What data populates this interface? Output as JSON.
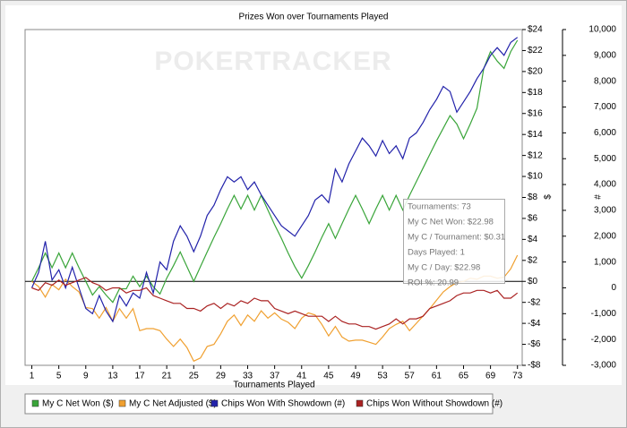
{
  "chart_data": {
    "type": "line",
    "title": "Prizes Won over Tournaments Played",
    "watermark": "POKERTRACKER",
    "x_label": "Tournaments Played",
    "y_label": "$",
    "y2_label": "#",
    "x": [
      1,
      2,
      3,
      4,
      5,
      6,
      7,
      8,
      9,
      10,
      11,
      12,
      13,
      14,
      15,
      16,
      17,
      18,
      19,
      20,
      21,
      22,
      23,
      24,
      25,
      26,
      27,
      28,
      29,
      30,
      31,
      32,
      33,
      34,
      35,
      36,
      37,
      38,
      39,
      40,
      41,
      42,
      43,
      44,
      45,
      46,
      47,
      48,
      49,
      50,
      51,
      52,
      53,
      54,
      55,
      56,
      57,
      58,
      59,
      60,
      61,
      62,
      63,
      64,
      65,
      66,
      67,
      68,
      69,
      70,
      71,
      72,
      73
    ],
    "xlim": [
      0,
      73.7
    ],
    "xticks": [
      1,
      5,
      9,
      13,
      17,
      21,
      25,
      29,
      33,
      37,
      41,
      45,
      49,
      53,
      57,
      61,
      65,
      69,
      73
    ],
    "ylim": [
      -8,
      24
    ],
    "yticks": [
      {
        "value": -8,
        "label": "-$8"
      },
      {
        "value": -6,
        "label": "-$6"
      },
      {
        "value": -4,
        "label": "-$4"
      },
      {
        "value": -2,
        "label": "-$2"
      },
      {
        "value": 0,
        "label": "$0"
      },
      {
        "value": 2,
        "label": "$2"
      },
      {
        "value": 4,
        "label": "$4"
      },
      {
        "value": 6,
        "label": "$6"
      },
      {
        "value": 8,
        "label": "$8"
      },
      {
        "value": 10,
        "label": "$10"
      },
      {
        "value": 12,
        "label": "$12"
      },
      {
        "value": 14,
        "label": "$14"
      },
      {
        "value": 16,
        "label": "$16"
      },
      {
        "value": 18,
        "label": "$18"
      },
      {
        "value": 20,
        "label": "$20"
      },
      {
        "value": 22,
        "label": "$22"
      },
      {
        "value": 24,
        "label": "$24"
      }
    ],
    "y2lim": [
      -3000,
      10000
    ],
    "y2ticks": [
      {
        "value": -3000,
        "label": "-3,000"
      },
      {
        "value": -2000,
        "label": "-2,000"
      },
      {
        "value": -1000,
        "label": "-1,000"
      },
      0,
      {
        "value": 1000,
        "label": "1,000"
      },
      {
        "value": 2000,
        "label": "2,000"
      },
      {
        "value": 3000,
        "label": "3,000"
      },
      {
        "value": 4000,
        "label": "4,000"
      },
      {
        "value": 5000,
        "label": "5,000"
      },
      {
        "value": 6000,
        "label": "6,000"
      },
      {
        "value": 7000,
        "label": "7,000"
      },
      {
        "value": 8000,
        "label": "8,000"
      },
      {
        "value": 9000,
        "label": "9,000"
      },
      {
        "value": 10000,
        "label": "10,000"
      }
    ],
    "grid": false,
    "legend": "bottom",
    "series": [
      {
        "name": "My C Net Won ($)",
        "color": "#3aa53a",
        "values": [
          0,
          1.3,
          2.7,
          1.3,
          2.7,
          1.3,
          2.7,
          1.3,
          0,
          -1.3,
          -0.5,
          -1.3,
          -2,
          -0.7,
          -0.7,
          0.5,
          -0.5,
          0.5,
          -0.5,
          -1.2,
          0.3,
          1.5,
          2.8,
          1.4,
          0,
          1.4,
          2.8,
          4.2,
          5.5,
          6.9,
          8.2,
          6.9,
          8.2,
          6.8,
          8.2,
          6.8,
          5.4,
          4.1,
          2.7,
          1.4,
          0.3,
          1.5,
          2.8,
          4.2,
          5.5,
          4.1,
          5.5,
          6.9,
          8.2,
          6.9,
          5.5,
          6.9,
          8.2,
          6.8,
          8.2,
          6.8,
          8.2,
          9.5,
          10.8,
          12.1,
          13.4,
          14.6,
          15.8,
          15,
          13.6,
          15,
          16.5,
          20.3,
          21.9,
          21,
          20.3,
          21.9,
          22.98
        ]
      },
      {
        "name": "My C Net Adjusted ($)",
        "color": "#f0a030",
        "values": [
          0,
          -0.5,
          -1.5,
          -0.3,
          -0.8,
          0.2,
          -0.5,
          -1,
          -2.5,
          -2.6,
          -3.5,
          -2.5,
          -3.8,
          -2.6,
          -3.5,
          -2.6,
          -4.7,
          -4.5,
          -4.5,
          -4.7,
          -5.5,
          -6.2,
          -5.5,
          -6.3,
          -7.6,
          -7.3,
          -6.2,
          -6,
          -5,
          -3.8,
          -3.2,
          -4.2,
          -3.2,
          -3.8,
          -2.8,
          -3.5,
          -3,
          -3.6,
          -3.9,
          -4.5,
          -3.5,
          -3,
          -3.2,
          -4.1,
          -5.2,
          -4.3,
          -5.3,
          -5.7,
          -5.6,
          -5.6,
          -5.8,
          -6,
          -5.3,
          -4.5,
          -4.1,
          -3.8,
          -4.7,
          -4,
          -3.3,
          -2.6,
          -1.8,
          -1,
          -0.5,
          -0.1,
          0,
          0.3,
          0.2,
          0.5,
          0.5,
          0.3,
          0.4,
          1.2,
          2.5
        ]
      },
      {
        "name": "Chips Won With Showdown (#)",
        "color": "#2222aa",
        "axis": "y2",
        "values": [
          0,
          600,
          1800,
          300,
          700,
          0,
          800,
          0,
          -800,
          -1000,
          -300,
          -900,
          -1300,
          -300,
          -700,
          -200,
          -400,
          600,
          -200,
          1000,
          700,
          1800,
          2400,
          2000,
          1400,
          2000,
          2800,
          3200,
          3800,
          4300,
          4100,
          4300,
          3800,
          4100,
          3600,
          3200,
          2800,
          2400,
          2200,
          2000,
          2400,
          2800,
          3400,
          3600,
          3300,
          4600,
          4100,
          4800,
          5300,
          5800,
          5500,
          5100,
          5700,
          5200,
          5500,
          5000,
          5800,
          6000,
          6400,
          6900,
          7300,
          7800,
          7600,
          6800,
          7200,
          7600,
          8100,
          8500,
          9000,
          9300,
          9000,
          9500,
          9700
        ]
      },
      {
        "name": "Chips Won Without Showdown (#)",
        "color": "#aa2222",
        "axis": "y2",
        "values": [
          0,
          -100,
          200,
          100,
          300,
          100,
          200,
          300,
          400,
          200,
          100,
          -100,
          0,
          0,
          -200,
          -100,
          -100,
          0,
          -300,
          -400,
          -500,
          -600,
          -600,
          -800,
          -800,
          -900,
          -700,
          -600,
          -800,
          -600,
          -700,
          -500,
          -600,
          -400,
          -500,
          -500,
          -800,
          -900,
          -1000,
          -900,
          -1000,
          -1100,
          -1100,
          -1100,
          -1300,
          -1100,
          -1300,
          -1400,
          -1400,
          -1500,
          -1500,
          -1600,
          -1500,
          -1400,
          -1200,
          -1400,
          -1200,
          -1200,
          -1100,
          -800,
          -700,
          -600,
          -500,
          -300,
          -200,
          -200,
          -100,
          -100,
          -200,
          -100,
          -400,
          -400,
          -200
        ]
      }
    ],
    "tooltip": [
      "Tournaments: 73",
      "My C Net Won: $22.98",
      "My C / Tournament: $0.31",
      "Days Played: 1",
      "My C / Day: $22.98",
      "ROI %: 20.99"
    ]
  }
}
